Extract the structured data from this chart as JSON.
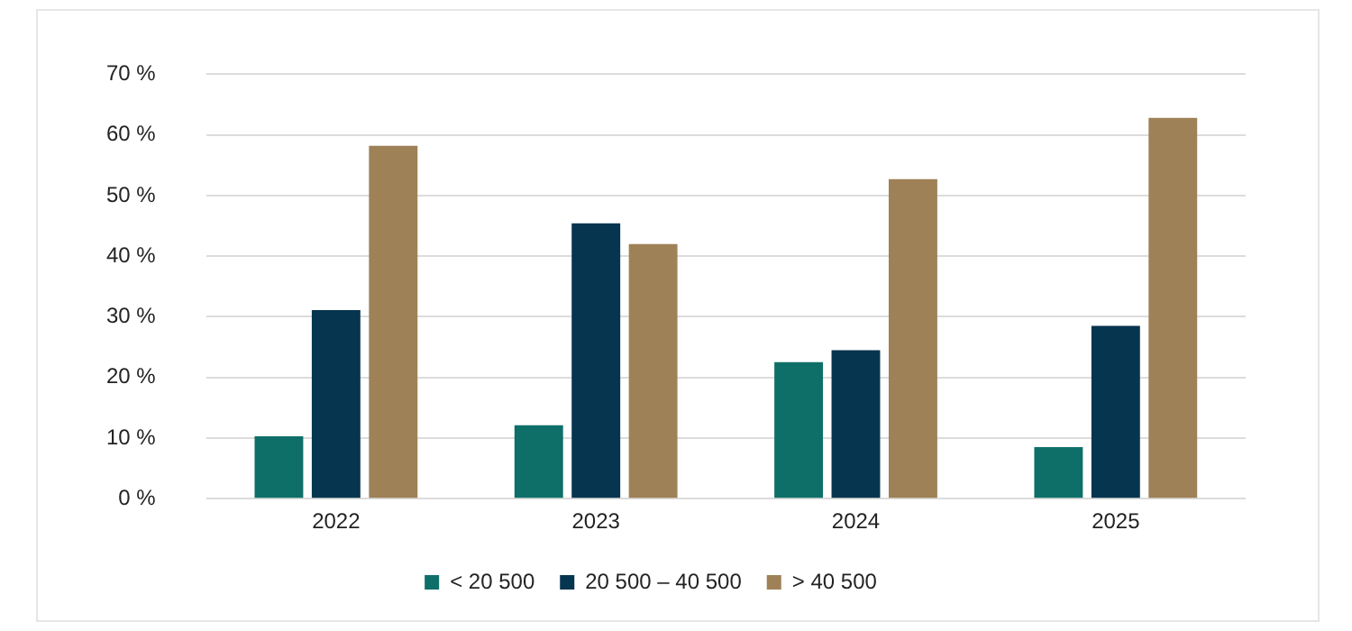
{
  "chart_data": {
    "type": "bar",
    "categories": [
      "2022",
      "2023",
      "2024",
      "2025"
    ],
    "series": [
      {
        "name": "< 20 500",
        "color": "#0e6f68",
        "values": [
          10.3,
          12.1,
          22.5,
          8.5
        ]
      },
      {
        "name": "20 500 – 40 500",
        "color": "#06354f",
        "values": [
          31.1,
          45.4,
          24.5,
          28.5
        ]
      },
      {
        "name": "> 40 500",
        "color": "#9e8157",
        "values": [
          58.2,
          42.0,
          52.7,
          62.8
        ]
      }
    ],
    "ylim": [
      0,
      70
    ],
    "yticks": [
      {
        "value": 0,
        "label": "0 %"
      },
      {
        "value": 10,
        "label": "10 %"
      },
      {
        "value": 20,
        "label": "20 %"
      },
      {
        "value": 30,
        "label": "30 %"
      },
      {
        "value": 40,
        "label": "40 %"
      },
      {
        "value": 50,
        "label": "50 %"
      },
      {
        "value": 60,
        "label": "60 %"
      },
      {
        "value": 70,
        "label": "70 %"
      }
    ],
    "grid": "y",
    "legend": "bottom"
  }
}
